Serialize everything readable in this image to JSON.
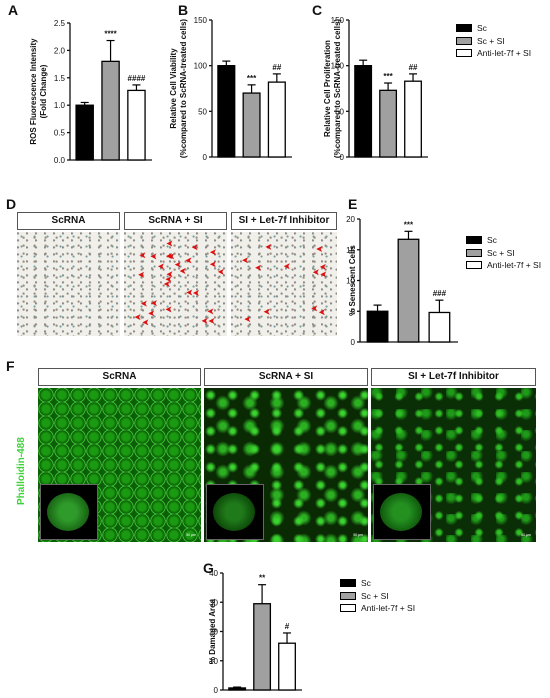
{
  "panels": {
    "A": "A",
    "B": "B",
    "C": "C",
    "D": "D",
    "E": "E",
    "F": "F",
    "G": "G"
  },
  "legend_items": [
    {
      "label": "Sc",
      "color": "#000000"
    },
    {
      "label": "Sc + SI",
      "color": "#a0a0a0"
    },
    {
      "label": "Anti-let-7f + SI",
      "color": "#ffffff"
    }
  ],
  "image_labels": {
    "d1": "ScRNA",
    "d2": "ScRNA + SI",
    "d3": "SI + Let-7f Inhibitor",
    "f1": "ScRNA",
    "f2": "ScRNA + SI",
    "f3": "SI + Let-7f Inhibitor",
    "f_side": "Phalloidin-488",
    "scale": "50 μm"
  },
  "chart_data": [
    {
      "id": "A",
      "type": "bar",
      "categories": [
        "Sc",
        "Sc + SI",
        "Anti-let-7f + SI"
      ],
      "values": [
        1.0,
        1.8,
        1.27
      ],
      "errors": [
        0.05,
        0.38,
        0.1
      ],
      "annotations": [
        "",
        "****",
        "####"
      ],
      "ylabel": [
        "ROS Fluorescence Intensity",
        "(Fold Change)"
      ],
      "ylim": [
        0,
        2.5
      ],
      "yticks": [
        "0.0",
        "0.5",
        "1.0",
        "1.5",
        "2.0",
        "2.5"
      ]
    },
    {
      "id": "B",
      "type": "bar",
      "categories": [
        "Sc",
        "Sc + SI",
        "Anti-let-7f + SI"
      ],
      "values": [
        100,
        70,
        82
      ],
      "errors": [
        5,
        9,
        9
      ],
      "annotations": [
        "",
        "***",
        "##"
      ],
      "ylabel": [
        "Relative Cell Viability",
        "(%compared to ScRNA-treated cells)"
      ],
      "ylim": [
        0,
        150
      ],
      "yticks": [
        "0",
        "50",
        "100",
        "150"
      ]
    },
    {
      "id": "C",
      "type": "bar",
      "categories": [
        "Sc",
        "Sc + SI",
        "Anti-let-7f + SI"
      ],
      "values": [
        100,
        73,
        83
      ],
      "errors": [
        6,
        8,
        8
      ],
      "annotations": [
        "",
        "***",
        "##"
      ],
      "ylabel": [
        "Relative Cell Proliferation",
        "(%compared to ScRNA-treated cells)"
      ],
      "ylim": [
        0,
        150
      ],
      "yticks": [
        "0",
        "50",
        "100",
        "150"
      ]
    },
    {
      "id": "E",
      "type": "bar",
      "categories": [
        "Sc",
        "Sc + SI",
        "Anti-let-7f + SI"
      ],
      "values": [
        5,
        16.7,
        4.8
      ],
      "errors": [
        1,
        1.3,
        2
      ],
      "annotations": [
        "",
        "***",
        "###"
      ],
      "ylabel": [
        "% Senescent Cells"
      ],
      "ylim": [
        0,
        20
      ],
      "yticks": [
        "0",
        "5",
        "10",
        "15",
        "20"
      ]
    },
    {
      "id": "G",
      "type": "bar",
      "categories": [
        "Sc",
        "Sc + SI",
        "Anti-let-7f + SI"
      ],
      "values": [
        0.7,
        29.5,
        16
      ],
      "errors": [
        0.3,
        6.5,
        3.5
      ],
      "annotations": [
        "",
        "**",
        "#"
      ],
      "ylabel": [
        "% Damaged Area"
      ],
      "ylim": [
        0,
        40
      ],
      "yticks": [
        "0",
        "10",
        "20",
        "30",
        "40"
      ]
    }
  ]
}
